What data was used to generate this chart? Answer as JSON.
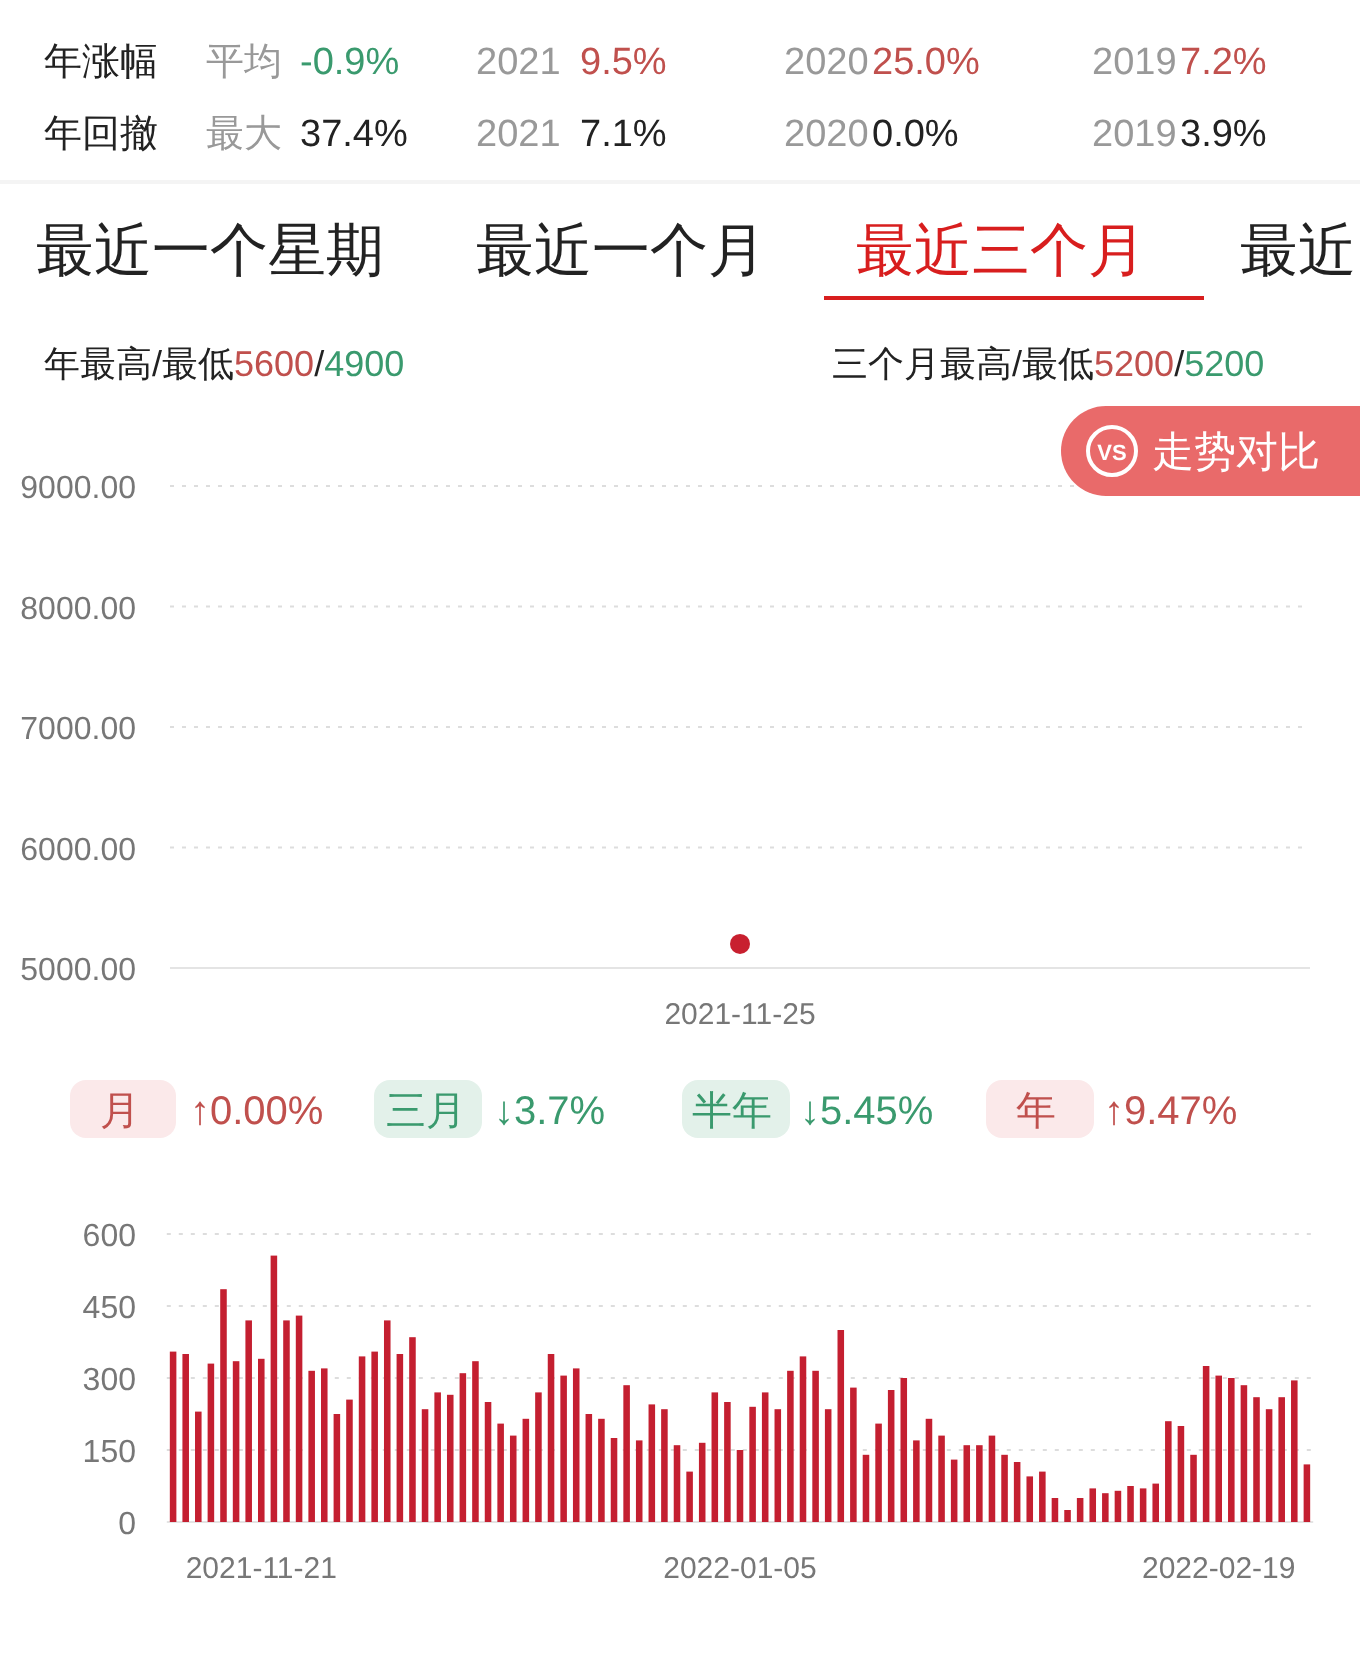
{
  "chart_data": [
    {
      "type": "other",
      "annotations": [
        "年涨幅",
        "平均",
        "-0.9%",
        "2021",
        "9.5%",
        "2020",
        "25.0%",
        "2019",
        "7.2%",
        "年回撤",
        "最大",
        "37.4%",
        "2021",
        "7.1%",
        "2020",
        "0.0%",
        "2019",
        "3.9%",
        "最近一个星期",
        "最近一个月",
        "最近三个月",
        "最近",
        "年最高/最低",
        "5600",
        "/",
        "4900",
        "三个月最高/最低",
        "5200",
        "/",
        "5200"
      ]
    },
    {
      "type": "scatter",
      "categories": [
        "2021-11-25"
      ],
      "color": "#c8202f",
      "values": [
        5200
      ],
      "ylim": [
        5000,
        9000
      ],
      "yticks": [
        {
          "value": 5000,
          "label": "5000.00"
        },
        {
          "value": 6000,
          "label": "6000.00"
        },
        {
          "value": 7000,
          "label": "7000.00"
        },
        {
          "value": 8000,
          "label": "8000.00"
        },
        {
          "value": 9000,
          "label": "9000.00"
        }
      ],
      "grid": "y",
      "marker": "circle",
      "annotations": [
        "VS",
        "走势对比"
      ]
    },
    {
      "type": "other",
      "annotations": [
        "月",
        "↑0.00%",
        "三月",
        "↓3.7%",
        "半年",
        "↓5.45%",
        "年",
        "↑9.47%"
      ]
    },
    {
      "type": "bar",
      "color": "#c41f30",
      "ylim": [
        0,
        600
      ],
      "yticks": [
        0,
        150,
        300,
        450,
        600
      ],
      "grid": "y",
      "categories": [
        null,
        null,
        null,
        null,
        null,
        null,
        null,
        "2021-11-21",
        null,
        null,
        null,
        null,
        null,
        null,
        null,
        null,
        null,
        null,
        null,
        null,
        null,
        null,
        null,
        null,
        null,
        null,
        null,
        null,
        null,
        null,
        null,
        null,
        null,
        null,
        null,
        null,
        null,
        null,
        null,
        null,
        null,
        null,
        null,
        null,
        null,
        "2022-01-05",
        null,
        null,
        null,
        null,
        null,
        null,
        null,
        null,
        null,
        null,
        null,
        null,
        null,
        null,
        null,
        null,
        null,
        null,
        null,
        null,
        null,
        null,
        null,
        null,
        null,
        null,
        null,
        null,
        null,
        null,
        null,
        null,
        null,
        null,
        null,
        null,
        null,
        "2022-02-19",
        null,
        null,
        null,
        null,
        null,
        null,
        null
      ],
      "values": [
        355,
        350,
        230,
        330,
        485,
        335,
        420,
        340,
        555,
        420,
        430,
        315,
        320,
        225,
        255,
        345,
        355,
        420,
        350,
        385,
        235,
        270,
        265,
        310,
        335,
        250,
        205,
        180,
        215,
        270,
        350,
        305,
        320,
        225,
        215,
        175,
        285,
        170,
        245,
        235,
        160,
        105,
        165,
        270,
        250,
        150,
        240,
        270,
        235,
        315,
        345,
        315,
        235,
        400,
        280,
        140,
        205,
        275,
        300,
        170,
        215,
        180,
        130,
        160,
        160,
        180,
        140,
        125,
        95,
        105,
        50,
        25,
        50,
        70,
        60,
        65,
        75,
        70,
        80,
        210,
        200,
        140,
        325,
        305,
        300,
        285,
        260,
        235,
        260,
        295,
        120
      ]
    }
  ]
}
